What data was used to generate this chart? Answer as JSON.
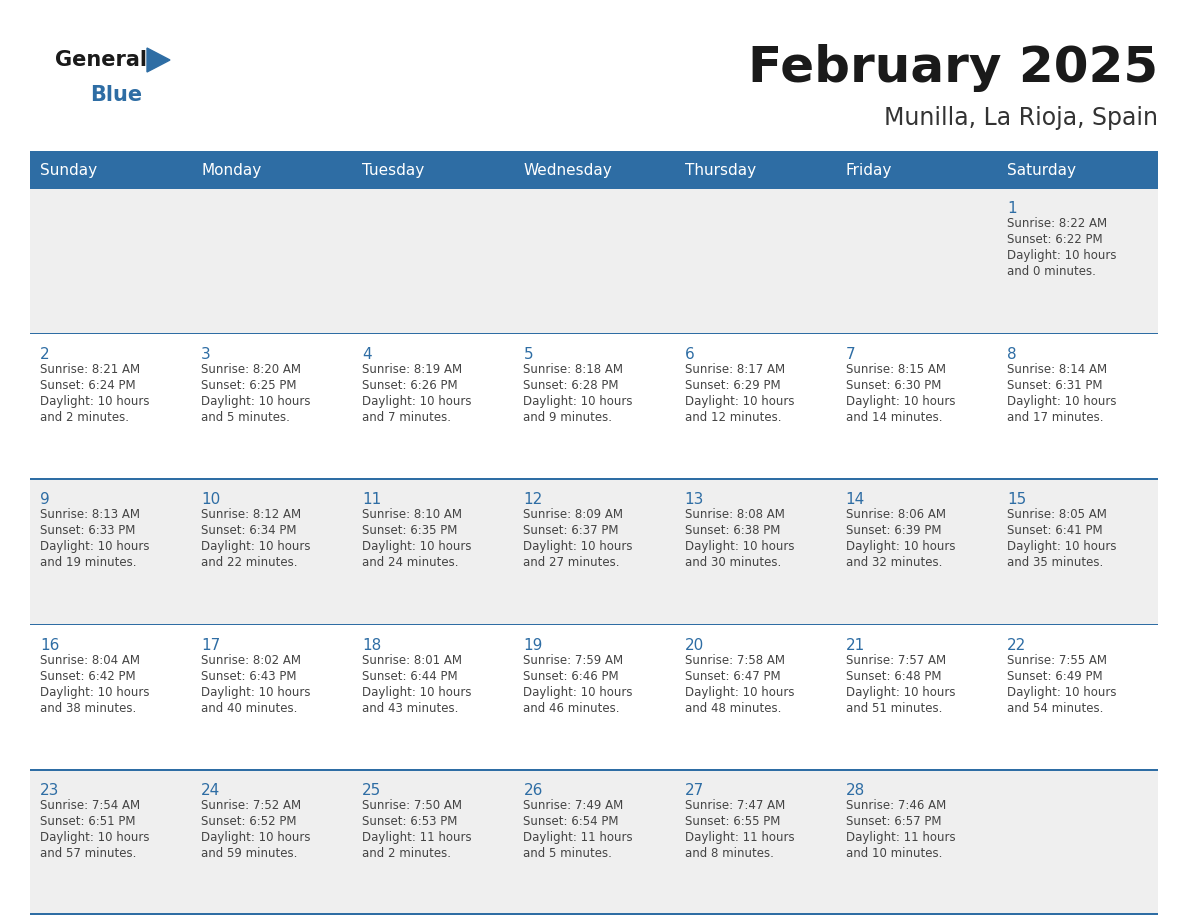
{
  "title": "February 2025",
  "subtitle": "Munilla, La Rioja, Spain",
  "header_bg": "#2E6DA4",
  "header_text_color": "#FFFFFF",
  "cell_bg_odd": "#EFEFEF",
  "cell_bg_even": "#FFFFFF",
  "day_number_color": "#2E6DA4",
  "info_text_color": "#444444",
  "border_color": "#2E6DA4",
  "days_of_week": [
    "Sunday",
    "Monday",
    "Tuesday",
    "Wednesday",
    "Thursday",
    "Friday",
    "Saturday"
  ],
  "calendar_data": [
    [
      null,
      null,
      null,
      null,
      null,
      null,
      {
        "day": 1,
        "sunrise": "8:22 AM",
        "sunset": "6:22 PM",
        "daylight_hours": 10,
        "daylight_minutes": 0
      }
    ],
    [
      {
        "day": 2,
        "sunrise": "8:21 AM",
        "sunset": "6:24 PM",
        "daylight_hours": 10,
        "daylight_minutes": 2
      },
      {
        "day": 3,
        "sunrise": "8:20 AM",
        "sunset": "6:25 PM",
        "daylight_hours": 10,
        "daylight_minutes": 5
      },
      {
        "day": 4,
        "sunrise": "8:19 AM",
        "sunset": "6:26 PM",
        "daylight_hours": 10,
        "daylight_minutes": 7
      },
      {
        "day": 5,
        "sunrise": "8:18 AM",
        "sunset": "6:28 PM",
        "daylight_hours": 10,
        "daylight_minutes": 9
      },
      {
        "day": 6,
        "sunrise": "8:17 AM",
        "sunset": "6:29 PM",
        "daylight_hours": 10,
        "daylight_minutes": 12
      },
      {
        "day": 7,
        "sunrise": "8:15 AM",
        "sunset": "6:30 PM",
        "daylight_hours": 10,
        "daylight_minutes": 14
      },
      {
        "day": 8,
        "sunrise": "8:14 AM",
        "sunset": "6:31 PM",
        "daylight_hours": 10,
        "daylight_minutes": 17
      }
    ],
    [
      {
        "day": 9,
        "sunrise": "8:13 AM",
        "sunset": "6:33 PM",
        "daylight_hours": 10,
        "daylight_minutes": 19
      },
      {
        "day": 10,
        "sunrise": "8:12 AM",
        "sunset": "6:34 PM",
        "daylight_hours": 10,
        "daylight_minutes": 22
      },
      {
        "day": 11,
        "sunrise": "8:10 AM",
        "sunset": "6:35 PM",
        "daylight_hours": 10,
        "daylight_minutes": 24
      },
      {
        "day": 12,
        "sunrise": "8:09 AM",
        "sunset": "6:37 PM",
        "daylight_hours": 10,
        "daylight_minutes": 27
      },
      {
        "day": 13,
        "sunrise": "8:08 AM",
        "sunset": "6:38 PM",
        "daylight_hours": 10,
        "daylight_minutes": 30
      },
      {
        "day": 14,
        "sunrise": "8:06 AM",
        "sunset": "6:39 PM",
        "daylight_hours": 10,
        "daylight_minutes": 32
      },
      {
        "day": 15,
        "sunrise": "8:05 AM",
        "sunset": "6:41 PM",
        "daylight_hours": 10,
        "daylight_minutes": 35
      }
    ],
    [
      {
        "day": 16,
        "sunrise": "8:04 AM",
        "sunset": "6:42 PM",
        "daylight_hours": 10,
        "daylight_minutes": 38
      },
      {
        "day": 17,
        "sunrise": "8:02 AM",
        "sunset": "6:43 PM",
        "daylight_hours": 10,
        "daylight_minutes": 40
      },
      {
        "day": 18,
        "sunrise": "8:01 AM",
        "sunset": "6:44 PM",
        "daylight_hours": 10,
        "daylight_minutes": 43
      },
      {
        "day": 19,
        "sunrise": "7:59 AM",
        "sunset": "6:46 PM",
        "daylight_hours": 10,
        "daylight_minutes": 46
      },
      {
        "day": 20,
        "sunrise": "7:58 AM",
        "sunset": "6:47 PM",
        "daylight_hours": 10,
        "daylight_minutes": 48
      },
      {
        "day": 21,
        "sunrise": "7:57 AM",
        "sunset": "6:48 PM",
        "daylight_hours": 10,
        "daylight_minutes": 51
      },
      {
        "day": 22,
        "sunrise": "7:55 AM",
        "sunset": "6:49 PM",
        "daylight_hours": 10,
        "daylight_minutes": 54
      }
    ],
    [
      {
        "day": 23,
        "sunrise": "7:54 AM",
        "sunset": "6:51 PM",
        "daylight_hours": 10,
        "daylight_minutes": 57
      },
      {
        "day": 24,
        "sunrise": "7:52 AM",
        "sunset": "6:52 PM",
        "daylight_hours": 10,
        "daylight_minutes": 59
      },
      {
        "day": 25,
        "sunrise": "7:50 AM",
        "sunset": "6:53 PM",
        "daylight_hours": 11,
        "daylight_minutes": 2
      },
      {
        "day": 26,
        "sunrise": "7:49 AM",
        "sunset": "6:54 PM",
        "daylight_hours": 11,
        "daylight_minutes": 5
      },
      {
        "day": 27,
        "sunrise": "7:47 AM",
        "sunset": "6:55 PM",
        "daylight_hours": 11,
        "daylight_minutes": 8
      },
      {
        "day": 28,
        "sunrise": "7:46 AM",
        "sunset": "6:57 PM",
        "daylight_hours": 11,
        "daylight_minutes": 10
      },
      null
    ]
  ]
}
